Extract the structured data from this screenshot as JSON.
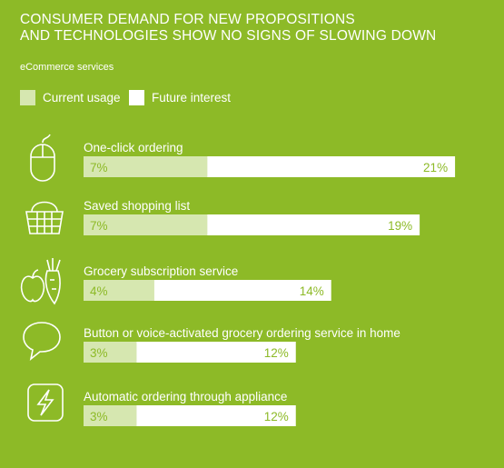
{
  "title_lines": [
    "CONSUMER DEMAND FOR NEW PROPOSITIONS",
    "AND TECHNOLOGIES SHOW NO SIGNS OF SLOWING DOWN"
  ],
  "subtitle": "eCommerce services",
  "colors": {
    "background": "#8dba27",
    "current": "#d6e7b0",
    "future": "#ffffff",
    "label": "#8dba27"
  },
  "chart_data": {
    "type": "bar",
    "orientation": "horizontal",
    "title": "CONSUMER DEMAND FOR NEW PROPOSITIONS AND TECHNOLOGIES SHOW NO SIGNS OF SLOWING DOWN",
    "subtitle": "eCommerce services",
    "legend": [
      "Current usage",
      "Future interest"
    ],
    "legend_placement": "top-left",
    "categories": [
      "One-click ordering",
      "Saved shopping list",
      "Grocery subscription service",
      "Button or voice-activated grocery ordering service in home",
      "Automatic ordering through appliance"
    ],
    "series": [
      {
        "name": "Current usage",
        "values": [
          7,
          7,
          4,
          3,
          3
        ],
        "labels": [
          "7%",
          "7%",
          "4%",
          "3%",
          "3%"
        ]
      },
      {
        "name": "Future interest",
        "values": [
          21,
          19,
          14,
          12,
          12
        ],
        "labels": [
          "21%",
          "19%",
          "14%",
          "12%",
          "12%"
        ]
      }
    ],
    "icons": [
      "mouse-icon",
      "basket-icon",
      "fruit-vegetable-icon",
      "speech-bubble-icon",
      "lightning-appliance-icon"
    ]
  }
}
